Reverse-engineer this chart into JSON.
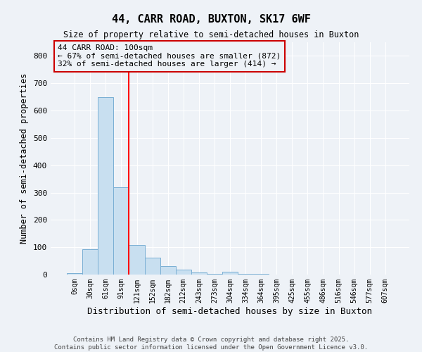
{
  "title_line1": "44, CARR ROAD, BUXTON, SK17 6WF",
  "title_line2": "Size of property relative to semi-detached houses in Buxton",
  "xlabel": "Distribution of semi-detached houses by size in Buxton",
  "ylabel": "Number of semi-detached properties",
  "categories": [
    "0sqm",
    "30sqm",
    "61sqm",
    "91sqm",
    "121sqm",
    "152sqm",
    "182sqm",
    "212sqm",
    "243sqm",
    "273sqm",
    "304sqm",
    "334sqm",
    "364sqm",
    "395sqm",
    "425sqm",
    "455sqm",
    "486sqm",
    "516sqm",
    "546sqm",
    "577sqm",
    "607sqm"
  ],
  "values": [
    5,
    92,
    649,
    320,
    107,
    63,
    30,
    18,
    7,
    2,
    10,
    2,
    2,
    0,
    0,
    0,
    0,
    0,
    0,
    0,
    0
  ],
  "bar_color": "#c8dff0",
  "bar_edgecolor": "#7aafd4",
  "redline_x": 3.5,
  "annotation_title": "44 CARR ROAD: 100sqm",
  "annotation_line2": "← 67% of semi-detached houses are smaller (872)",
  "annotation_line3": "32% of semi-detached houses are larger (414) →",
  "annotation_box_color": "#cc0000",
  "ylim": [
    0,
    850
  ],
  "yticks": [
    0,
    100,
    200,
    300,
    400,
    500,
    600,
    700,
    800
  ],
  "footer_line1": "Contains HM Land Registry data © Crown copyright and database right 2025.",
  "footer_line2": "Contains public sector information licensed under the Open Government Licence v3.0.",
  "background_color": "#eef2f7",
  "grid_color": "#ffffff"
}
